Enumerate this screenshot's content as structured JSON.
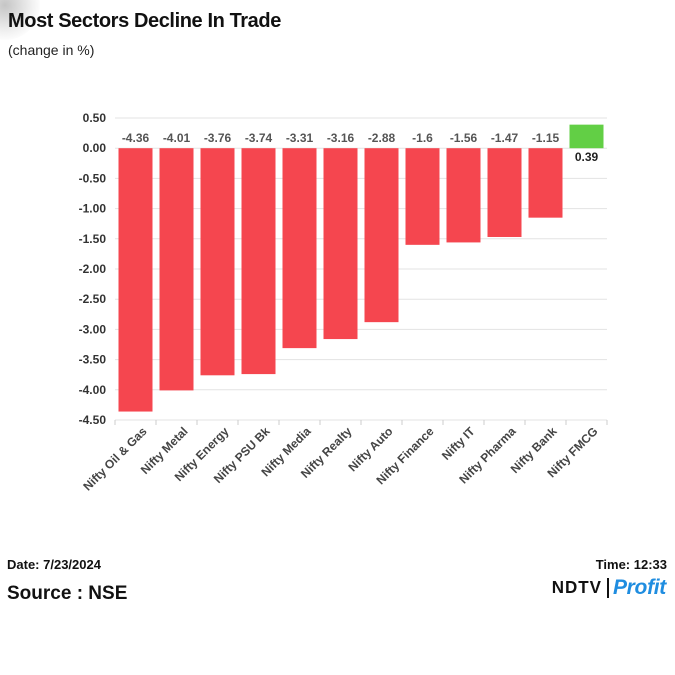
{
  "title": "Most Sectors Decline In Trade",
  "subtitle": "(change in %)",
  "footer": {
    "date": "Date: 7/23/2024",
    "time": "Time: 12:33",
    "source": "Source : NSE",
    "logo_brand": "NDTV",
    "logo_product": "Profit"
  },
  "colors": {
    "negative": "#f5464f",
    "positive": "#62cf45",
    "grid": "#e3e3e3",
    "logo_accent": "#1f8de0"
  },
  "chart_data": {
    "type": "bar",
    "categories": [
      "Nifty Oil & Gas",
      "Nifty Metal",
      "Nifty Energy",
      "Nifty PSU Bk",
      "Nifty Media",
      "Nifty Realty",
      "Nifty Auto",
      "Nifty Finance",
      "Nifty IT",
      "Nifty Pharma",
      "Nifty Bank",
      "Nifty FMCG"
    ],
    "values": [
      -4.36,
      -4.01,
      -3.76,
      -3.74,
      -3.31,
      -3.16,
      -2.88,
      -1.6,
      -1.56,
      -1.47,
      -1.15,
      0.39
    ],
    "data_labels": [
      "-4.36",
      "-4.01",
      "-3.76",
      "-3.74",
      "-3.31",
      "-3.16",
      "-2.88",
      "-1.6",
      "-1.56",
      "-1.47",
      "-1.15",
      "0.39"
    ],
    "yticks": [
      "0.50",
      "0.00",
      "-0.50",
      "-1.00",
      "-1.50",
      "-2.00",
      "-2.50",
      "-3.00",
      "-3.50",
      "-4.00",
      "-4.50"
    ],
    "ytick_values": [
      0.5,
      0,
      -0.5,
      -1,
      -1.5,
      -2,
      -2.5,
      -3,
      -3.5,
      -4,
      -4.5
    ],
    "ylim": [
      -4.5,
      0.5
    ],
    "grid": true,
    "legend": "none"
  }
}
